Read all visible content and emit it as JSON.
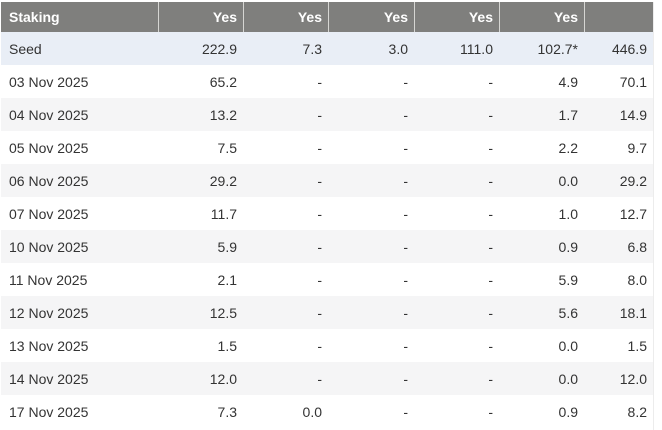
{
  "colors": {
    "header_bg": "#7f7f7d",
    "header_text": "#ffffff",
    "header_divider": "#d6d6d3",
    "seed_row_bg": "#e9eef6",
    "stripe_row_bg": "#f5f5f6",
    "body_text": "#333333",
    "page_bg": "#ffffff"
  },
  "table": {
    "header": {
      "first_label": "Staking",
      "value_cols": [
        "Yes",
        "Yes",
        "Yes",
        "Yes",
        "Yes",
        ""
      ]
    },
    "rows": [
      {
        "label": "Seed",
        "values": [
          "222.9",
          "7.3",
          "3.0",
          "111.0",
          "102.7*",
          "446.9"
        ]
      },
      {
        "label": "03 Nov 2025",
        "values": [
          "65.2",
          "-",
          "-",
          "-",
          "4.9",
          "70.1"
        ]
      },
      {
        "label": "04 Nov 2025",
        "values": [
          "13.2",
          "-",
          "-",
          "-",
          "1.7",
          "14.9"
        ]
      },
      {
        "label": "05 Nov 2025",
        "values": [
          "7.5",
          "-",
          "-",
          "-",
          "2.2",
          "9.7"
        ]
      },
      {
        "label": "06 Nov 2025",
        "values": [
          "29.2",
          "-",
          "-",
          "-",
          "0.0",
          "29.2"
        ]
      },
      {
        "label": "07 Nov 2025",
        "values": [
          "11.7",
          "-",
          "-",
          "-",
          "1.0",
          "12.7"
        ]
      },
      {
        "label": "10 Nov 2025",
        "values": [
          "5.9",
          "-",
          "-",
          "-",
          "0.9",
          "6.8"
        ]
      },
      {
        "label": "11 Nov 2025",
        "values": [
          "2.1",
          "-",
          "-",
          "-",
          "5.9",
          "8.0"
        ]
      },
      {
        "label": "12 Nov 2025",
        "values": [
          "12.5",
          "-",
          "-",
          "-",
          "5.6",
          "18.1"
        ]
      },
      {
        "label": "13 Nov 2025",
        "values": [
          "1.5",
          "-",
          "-",
          "-",
          "0.0",
          "1.5"
        ]
      },
      {
        "label": "14 Nov 2025",
        "values": [
          "12.0",
          "-",
          "-",
          "-",
          "0.0",
          "12.0"
        ]
      },
      {
        "label": "17 Nov 2025",
        "values": [
          "7.3",
          "0.0",
          "-",
          "-",
          "0.9",
          "8.2"
        ]
      }
    ]
  }
}
